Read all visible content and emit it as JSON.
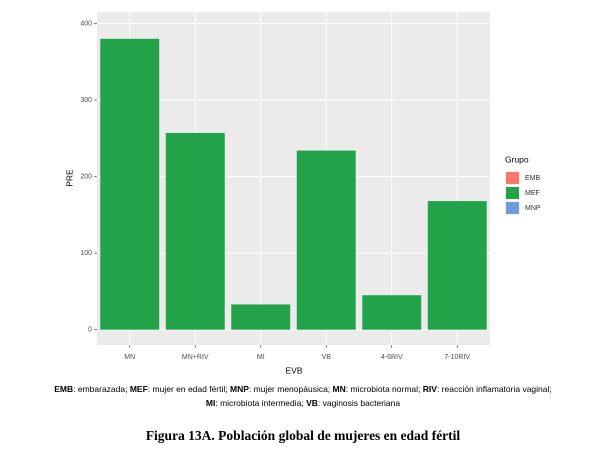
{
  "chart_data": {
    "type": "bar",
    "categories": [
      "MN",
      "MN+RIV",
      "MI",
      "VB",
      "4-6RIV",
      "7-10RIV"
    ],
    "series": [
      {
        "name": "EMB",
        "color": "#f8766d",
        "values": [
          null,
          null,
          null,
          null,
          null,
          null
        ]
      },
      {
        "name": "MEF",
        "color": "#22a34a",
        "values": [
          380,
          257,
          33,
          234,
          45,
          168
        ]
      },
      {
        "name": "MNP",
        "color": "#6f9bdc",
        "values": [
          null,
          null,
          null,
          null,
          null,
          null
        ]
      }
    ],
    "ylim": [
      -20,
      415
    ],
    "yticks": [
      0,
      100,
      200,
      300,
      400
    ],
    "grid": true,
    "x_label": "EVB",
    "y_label": "PRE",
    "legend_title": "Grupo",
    "legend_position": "right",
    "caption_lines": [
      [
        {
          "text": "EMB",
          "bold": true
        },
        {
          "text": ": embarazada; "
        },
        {
          "text": "MEF",
          "bold": true
        },
        {
          "text": ": mujer en edad fértil; "
        },
        {
          "text": "MNP",
          "bold": true
        },
        {
          "text": ": mujer menopáusica; "
        },
        {
          "text": "MN",
          "bold": true
        },
        {
          "text": ": microbiota normal; "
        },
        {
          "text": "RIV",
          "bold": true
        },
        {
          "text": ": reacción inflamatoria vaginal;"
        }
      ],
      [
        {
          "text": "MI",
          "bold": true
        },
        {
          "text": ": microbiota intermedia; "
        },
        {
          "text": "VB",
          "bold": true
        },
        {
          "text": ": vaginosis bacteriana"
        }
      ]
    ],
    "figure_title": "Figura 13A. Población global de mujeres en edad fértil"
  }
}
